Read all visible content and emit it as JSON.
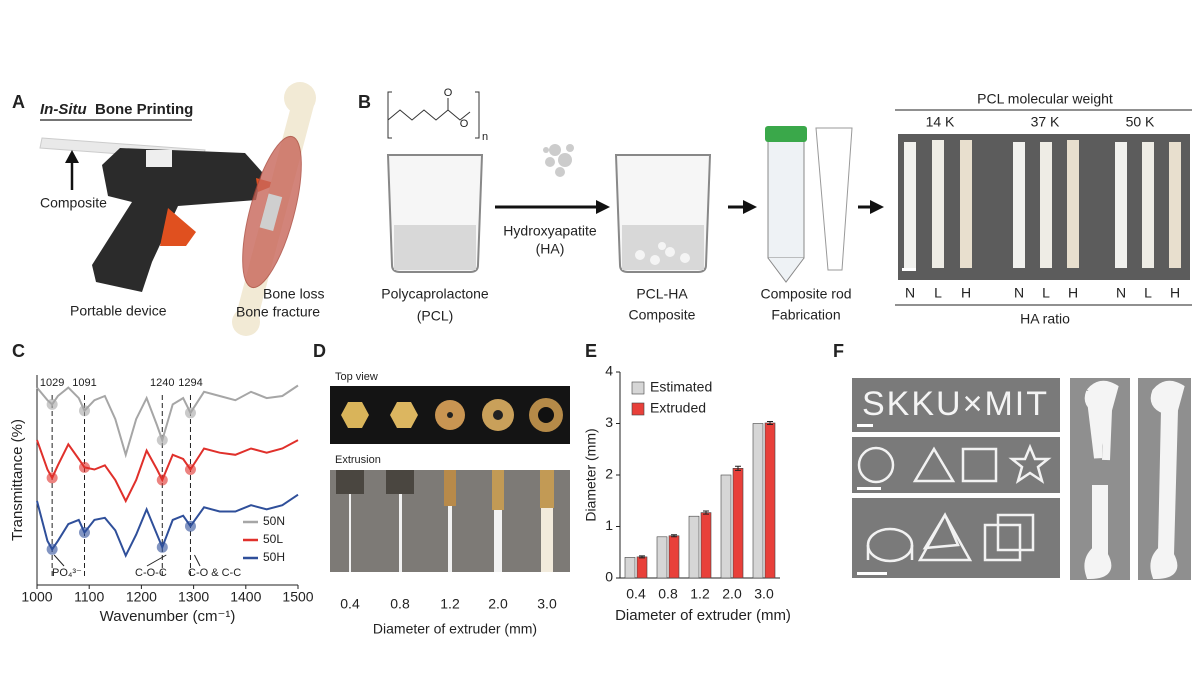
{
  "panel_a": {
    "letter": "A",
    "title_italic": "In-Situ",
    "title_rest": "Bone Printing",
    "composite": "Composite",
    "device": "Portable device",
    "bone_loss": "Bone loss",
    "bone_fracture": "Bone fracture"
  },
  "panel_b": {
    "letter": "B",
    "structure": {
      "oxygen_top": "O",
      "oxygen_chain": "O",
      "repeat": "n"
    },
    "pcl": [
      "Polycaprolactone",
      "(PCL)"
    ],
    "ha": [
      "Hydroxyapatite",
      "(HA)"
    ],
    "composite": [
      "PCL-HA",
      "Composite"
    ],
    "rod": [
      "Composite rod",
      "Fabrication"
    ],
    "molecular_weight": {
      "title": "PCL molecular weight",
      "groups": [
        "14 K",
        "37 K",
        "50 K"
      ]
    },
    "ha_ratio": {
      "title": "HA ratio",
      "levels": [
        "N",
        "L",
        "H",
        "N",
        "L",
        "H",
        "N",
        "L",
        "H"
      ]
    }
  },
  "panel_c": {
    "letter": "C"
  },
  "panel_d": {
    "letter": "D",
    "top_view": "Top view",
    "extrusion": "Extrusion",
    "diameters": [
      "0.4",
      "0.8",
      "1.2",
      "2.0",
      "3.0"
    ],
    "x_label": "Diameter of extruder (mm)"
  },
  "panel_e": {
    "letter": "E"
  },
  "panel_f": {
    "letter": "F",
    "print_text": "SKKU×MIT"
  },
  "chart_data": [
    {
      "type": "line",
      "x_label": "Wavenumber (cm⁻¹)",
      "y_label": "Transmittance (%)",
      "x": [
        1000,
        1020,
        1029,
        1040,
        1060,
        1080,
        1091,
        1110,
        1130,
        1150,
        1170,
        1190,
        1210,
        1230,
        1240,
        1260,
        1280,
        1294,
        1320,
        1350,
        1380,
        1410,
        1440,
        1470,
        1500
      ],
      "series": [
        {
          "name": "50N",
          "color": "#a6a6a6",
          "values": [
            94,
            88,
            86,
            90,
            94,
            89,
            83,
            88,
            90,
            79,
            62,
            79,
            89,
            76,
            69,
            86,
            89,
            82,
            92,
            90,
            88,
            92,
            89,
            90,
            95
          ]
        },
        {
          "name": "50L",
          "color": "#e0302b",
          "values": [
            69,
            55,
            51,
            57,
            67,
            60,
            56,
            55,
            57,
            50,
            40,
            50,
            64,
            55,
            50,
            62,
            60,
            55,
            65,
            63,
            62,
            65,
            63,
            65,
            69
          ]
        },
        {
          "name": "50H",
          "color": "#2f4f9a",
          "values": [
            40,
            21,
            17,
            21,
            29,
            31,
            25,
            31,
            32,
            26,
            14,
            24,
            36,
            24,
            18,
            31,
            33,
            28,
            37,
            35,
            35,
            38,
            36,
            38,
            43
          ]
        }
      ],
      "xlim": [
        1000,
        1500
      ],
      "ylim": [
        0,
        100
      ],
      "xticks": [
        1000,
        1100,
        1200,
        1300,
        1400,
        1500
      ],
      "peaks": [
        1029,
        1091,
        1240,
        1294
      ],
      "bond_labels": [
        "PO₄³⁻",
        "C-O-C",
        "C-O & C-C"
      ],
      "legend": "lower right"
    },
    {
      "type": "bar",
      "x_label": "Diameter of extruder (mm)",
      "y_label": "Diameter (mm)",
      "categories": [
        "0.4",
        "0.8",
        "1.2",
        "2.0",
        "3.0"
      ],
      "series": [
        {
          "name": "Estimated",
          "color": "#d6d6d6",
          "values": [
            0.4,
            0.8,
            1.2,
            2.0,
            3.0
          ]
        },
        {
          "name": "Extruded",
          "color": "#e8403a",
          "values": [
            0.41,
            0.82,
            1.27,
            2.13,
            3.01
          ],
          "errors": [
            0.02,
            0.02,
            0.03,
            0.04,
            0.03
          ]
        }
      ],
      "ylim": [
        0,
        4
      ],
      "yticks": [
        0,
        1,
        2,
        3,
        4
      ],
      "legend": "upper left"
    }
  ]
}
